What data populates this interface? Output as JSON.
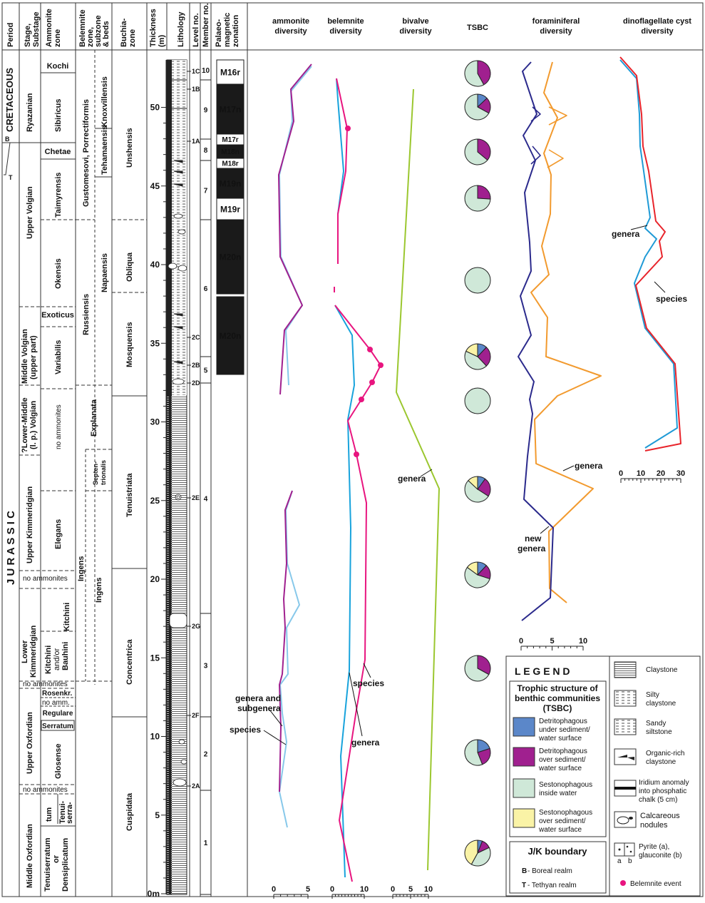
{
  "headers": {
    "period": "Period",
    "stage_1": "Stage,",
    "stage_2": "Substage",
    "ammonite_zone_1": "Ammonite",
    "ammonite_zone_2": "zone",
    "belemnite_zone_1": "Belemnite",
    "belemnite_zone_2": "zone,",
    "belemnite_zone_3": "subzone",
    "belemnite_zone_4": "& beds",
    "buchia_zone_1": "Buchia-",
    "buchia_zone_2": "zone",
    "thickness_1": "Thickness",
    "thickness_2": "(m)",
    "lithology": "Lithology",
    "level_no": "Level no.",
    "member_no": "Member no.",
    "palaeomag_1": "Palaeo-",
    "palaeomag_2": "magnetic",
    "palaeomag_3": "zonation",
    "ammonite_div_1": "ammonite",
    "ammonite_div_2": "diversity",
    "belemnite_div_1": "belemnite",
    "belemnite_div_2": "diversity",
    "bivalve_div_1": "bivalve",
    "bivalve_div_2": "diversity",
    "tsbc": "TSBC",
    "foram_div_1": "foraminiferal",
    "foram_div_2": "diversity",
    "dino_div_1": "dinoflagellate cyst",
    "dino_div_2": "diversity"
  },
  "periods": {
    "cretaceous": "CRETACEOUS",
    "jurassic": "J U R A S S I C",
    "b": "B",
    "t": "T"
  },
  "stages": {
    "ryazanian": "Ryazanian",
    "upper_volgian": "Upper Volgian",
    "middle_volgian_1": "Middle Volgian",
    "middle_volgian_2": "(upper part)",
    "lower_middle_1": "?Lower-Middle",
    "lower_middle_2": "(l. p.) Volgian",
    "upper_kimm": "Upper Kimmeridgian",
    "no_ammonites": "no ammonites",
    "lower_kimm_1": "Lower",
    "lower_kimm_2": "Kimmeridgian",
    "upper_oxf": "Upper Oxfordian",
    "middle_oxf": "Middle Oxfordian"
  },
  "ammonite_zones": {
    "kochi": "Kochi",
    "sibiricus": "Sibiricus",
    "chetae": "Chetae",
    "taimyrensis": "Taimyrensis",
    "okensis": "Okensis",
    "exoticus": "Exoticus",
    "variabilis": "Variabilis",
    "no_ammonites": "no ammonites",
    "elegans": "Elegans",
    "kitchini": "Kitchini",
    "kitchini_bauhini_1": "Kitchini",
    "kitchini_bauhini_2": "and/or",
    "kitchini_bauhini_3": "Bauhini",
    "rosenkr": "Rosenkr.",
    "no_amm": "no amm.",
    "regulare": "Regulare",
    "serratum": "Serratum",
    "glosense": "Glosense",
    "tenui_1": "Tenui-",
    "tenui_2": "serra-",
    "tenui_3": "tum",
    "tenuiserratum_1": "Tenuiserratum",
    "tenuiserratum_2": "or",
    "tenuiserratum_3": "Densiplicatum"
  },
  "belemnite_zones": {
    "gustomesovi": "Gustomesovi, Porrectiformis",
    "knoxvillensis": "Knoxvillensis",
    "tehamaensis": "Tehamaensis",
    "russiensis": "Russiensis",
    "napaensis": "Napaensis",
    "explanata": "Explanata",
    "septentrionalis_1": "Septen-",
    "septentrionalis_2": "trionalis",
    "ingens_outer": "Ingens",
    "ingens_inner": "Ingens"
  },
  "buchia_zones": {
    "unshensis": "Unshensis",
    "obliqua": "Obliqua",
    "mosquensis": "Mosquensis",
    "tenuistriata": "Tenuistriata",
    "concentrica": "Concentrica",
    "cuspidata": "Cuspidata"
  },
  "thickness_ticks": [
    "0m",
    "5",
    "10",
    "15",
    "20",
    "25",
    "30",
    "35",
    "40",
    "45",
    "50"
  ],
  "levels": [
    "1C",
    "1B",
    "1A",
    "2C",
    "2B",
    "2D",
    "2E",
    "2G",
    "2F",
    "2A"
  ],
  "members": [
    "10",
    "9",
    "8",
    "7",
    "6",
    "5",
    "4",
    "3",
    "2",
    "1"
  ],
  "magnetozones": [
    "M16r",
    "M17n",
    "M17r",
    "M18n",
    "M18r",
    "M19n",
    "M19r",
    "M20n",
    "M20n"
  ],
  "annotations": {
    "genera_subgenera_1": "genera and",
    "genera_subgenera_2": "subgenera",
    "species": "species",
    "bel_species": "species",
    "bel_genera": "genera",
    "biv_genera": "genera",
    "foram_genera": "genera",
    "new_genera_1": "new",
    "new_genera_2": "genera",
    "dino_genera": "genera",
    "dino_species": "species"
  },
  "axis_ticks": {
    "ammonite": [
      "0",
      "5"
    ],
    "belemnite": [
      "0",
      "10"
    ],
    "bivalve": [
      "0",
      "5",
      "10"
    ],
    "foram": [
      "0",
      "5",
      "10"
    ],
    "dino": [
      "0",
      "10",
      "20",
      "30"
    ]
  },
  "colors": {
    "detritophagous_under": "#5b87c9",
    "detritophagous_over": "#a0208f",
    "sestonophagous_inside": "#cfe8d8",
    "sestonophagous_over": "#faf3a6",
    "ammonite_species": "#87c8ea",
    "ammonite_genera": "#a0208f",
    "belemnite_species": "#e8157f",
    "belemnite_genera": "#18a3dc",
    "bivalve_genera": "#9bc72f",
    "foram_genera": "#f29a2e",
    "foram_new_genera": "#2b2a8c",
    "dino_genera": "#1f9ad6",
    "dino_species": "#e8242b"
  },
  "legend": {
    "title": "L E G E N D",
    "tsbc_title_1": "Trophic structure of",
    "tsbc_title_2": "benthic communities",
    "tsbc_title_3": "(TSBC)",
    "det_under_1": "Detritophagous",
    "det_under_2": "under sediment/",
    "det_under_3": "water surface",
    "det_over_1": "Detritophagous",
    "det_over_2": "over sediment/",
    "det_over_3": "water surface",
    "ses_inside_1": "Sestonophagous",
    "ses_inside_2": "inside water",
    "ses_over_1": "Sestonophagous",
    "ses_over_2": "over sediment/",
    "ses_over_3": "water surface",
    "jk_title": "J/K boundary",
    "boreal_letter": "B",
    "boreal": " - Boreal realm",
    "tethyan_letter": "T",
    "tethyan": " - Tethyan realm",
    "claystone": "Claystone",
    "silty_1": "Silty",
    "silty_2": "claystone",
    "sandy_1": "Sandy",
    "sandy_2": "siltstone",
    "organic_1": "Organic-rich",
    "organic_2": "claystone",
    "iridium_1": "Iridium anomaly",
    "iridium_2": "into phosphatic",
    "iridium_3": "chalk (5 cm)",
    "calc_1": "Calcareous",
    "calc_2": "nodules",
    "pyrite_1": "Pyrite (a),",
    "pyrite_2": "glauconite (b)",
    "pyrite_a": "a",
    "pyrite_b": "b",
    "belemnite_event": "Belemnite event"
  }
}
